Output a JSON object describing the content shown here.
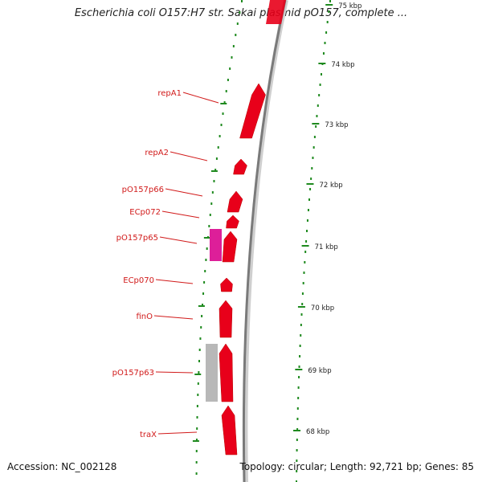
{
  "title": "Escherichia coli O157:H7 str. Sakai plasmid pO157, complete ...",
  "footer": {
    "accession": "Accession: NC_002128",
    "summary": "Topology: circular; Length: 92,721 bp; Genes: 85"
  },
  "colors": {
    "gene": "#e8001a",
    "gene_magenta": "#dd1f99",
    "gene_gray": "#b8b8b8",
    "label": "#d11a1a",
    "tick": "#1f8a1f",
    "backbone": "#7a7a7a"
  },
  "kbp_ticks": [
    "75 kbp",
    "74 kbp",
    "73 kbp",
    "72 kbp",
    "71 kbp",
    "70 kbp",
    "69 kbp",
    "68 kbp"
  ],
  "genes": [
    {
      "name": "repA1",
      "labeled": true
    },
    {
      "name": "repA2",
      "labeled": true
    },
    {
      "name": "pO157p66",
      "labeled": true
    },
    {
      "name": "ECp072",
      "labeled": true
    },
    {
      "name": "pO157p65",
      "labeled": true
    },
    {
      "name": "ECp070",
      "labeled": true
    },
    {
      "name": "finO",
      "labeled": true
    },
    {
      "name": "pO157p63",
      "labeled": true
    },
    {
      "name": "traX",
      "labeled": true
    }
  ]
}
